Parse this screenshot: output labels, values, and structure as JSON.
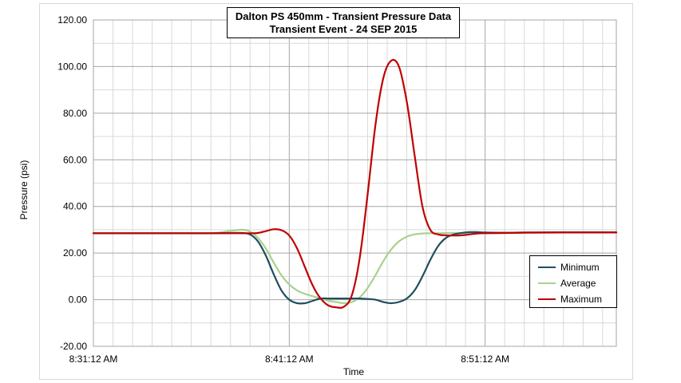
{
  "chart_data": {
    "type": "line",
    "title": "Dalton PS 450mm - Transient Pressure Data",
    "subtitle": "Transient Event - 24 SEP 2015",
    "xlabel": "Time",
    "ylabel": "Pressure (psi)",
    "ylim": [
      -20,
      120
    ],
    "yticks": [
      "-20.00",
      "0.00",
      "20.00",
      "40.00",
      "60.00",
      "80.00",
      "100.00",
      "120.00"
    ],
    "xlim": [
      "8:31:12 AM",
      "8:57:54 AM"
    ],
    "xticks": [
      "8:31:12 AM",
      "8:41:12 AM",
      "8:51:12 AM"
    ],
    "grid": true,
    "legend_position": "bottom-right",
    "x": [
      "8:31:12 AM",
      "8:33:12 AM",
      "8:35:12 AM",
      "8:37:12 AM",
      "8:38:12 AM",
      "8:38:48 AM",
      "8:39:12 AM",
      "8:39:36 AM",
      "8:40:00 AM",
      "8:40:24 AM",
      "8:40:48 AM",
      "8:41:12 AM",
      "8:41:36 AM",
      "8:42:00 AM",
      "8:42:24 AM",
      "8:42:48 AM",
      "8:43:12 AM",
      "8:43:36 AM",
      "8:44:00 AM",
      "8:44:24 AM",
      "8:44:48 AM",
      "8:45:12 AM",
      "8:45:36 AM",
      "8:46:00 AM",
      "8:46:24 AM",
      "8:46:48 AM",
      "8:47:12 AM",
      "8:47:36 AM",
      "8:48:00 AM",
      "8:48:24 AM",
      "8:48:48 AM",
      "8:49:12 AM",
      "8:49:36 AM",
      "8:50:00 AM",
      "8:50:24 AM",
      "8:50:48 AM",
      "8:51:12 AM",
      "8:52:12 AM",
      "8:53:12 AM",
      "8:55:12 AM",
      "8:57:54 AM"
    ],
    "series": [
      {
        "name": "Minimum",
        "color": "#1f4e5e",
        "values": [
          28.5,
          28.5,
          28.5,
          28.5,
          28.6,
          28.6,
          28.0,
          25.0,
          19.0,
          11.0,
          4.0,
          0.0,
          -1.5,
          -1.5,
          -0.5,
          0.5,
          0.5,
          0.5,
          0.5,
          0.5,
          0.5,
          0.3,
          0.0,
          -1.0,
          -1.5,
          -1.0,
          0.5,
          4.0,
          10.0,
          17.0,
          23.0,
          26.5,
          28.0,
          28.6,
          29.0,
          29.0,
          28.8,
          28.7,
          28.8,
          28.9,
          28.9
        ]
      },
      {
        "name": "Average",
        "color": "#a9d18e",
        "values": [
          28.5,
          28.5,
          28.5,
          28.5,
          29.5,
          30.0,
          29.2,
          26.5,
          22.0,
          16.0,
          10.5,
          6.5,
          4.0,
          2.5,
          1.5,
          0.5,
          -0.5,
          -1.0,
          -1.5,
          -1.0,
          1.0,
          5.0,
          10.5,
          16.5,
          21.5,
          25.0,
          27.0,
          28.0,
          28.4,
          28.5,
          28.5,
          28.6,
          28.6,
          28.6,
          28.6,
          28.7,
          28.7,
          28.7,
          28.8,
          28.9,
          28.9
        ]
      },
      {
        "name": "Maximum",
        "color": "#c00000",
        "values": [
          28.5,
          28.5,
          28.5,
          28.5,
          28.5,
          28.5,
          28.5,
          28.6,
          29.4,
          30.2,
          29.8,
          27.5,
          22.0,
          14.0,
          6.0,
          0.5,
          -2.5,
          -3.3,
          -3.0,
          2.0,
          18.0,
          45.0,
          75.0,
          95.0,
          102.5,
          100.0,
          85.0,
          62.0,
          40.0,
          30.0,
          28.0,
          27.6,
          27.5,
          27.6,
          28.0,
          28.4,
          28.5,
          28.6,
          28.7,
          28.8,
          28.8
        ]
      }
    ]
  }
}
